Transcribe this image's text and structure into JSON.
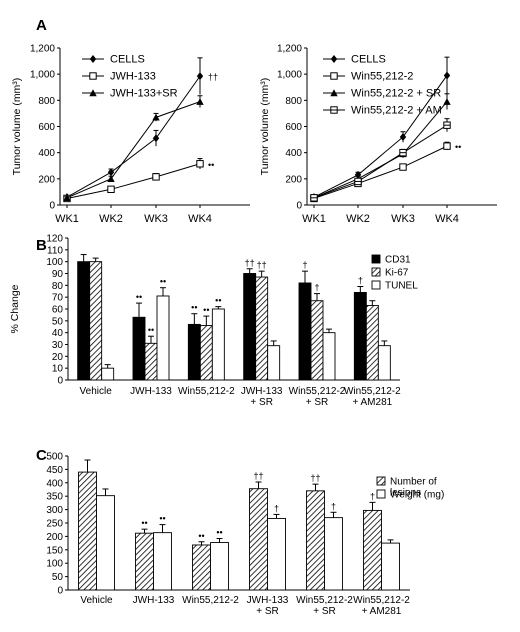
{
  "panels": [
    {
      "id": "A",
      "label": "A"
    },
    {
      "id": "B",
      "label": "B"
    },
    {
      "id": "C",
      "label": "C"
    }
  ],
  "chart_data": [
    {
      "type": "line",
      "panel": "A",
      "ylabel": "Tumor volume (mm³)",
      "categories": [
        "WK1",
        "WK2",
        "WK3",
        "WK4"
      ],
      "ylim": [
        0,
        1200
      ],
      "yticks": [
        "0",
        "200",
        "400",
        "600",
        "800",
        "1,000",
        "1,200"
      ],
      "legend_position": "top-left",
      "series": [
        {
          "name": "CELLS",
          "marker": "diamond",
          "values": [
            60,
            250,
            510,
            985
          ],
          "errors": [
            10,
            25,
            60,
            140
          ],
          "mark": "††"
        },
        {
          "name": "JWH-133",
          "marker": "square",
          "values": [
            50,
            120,
            215,
            315
          ],
          "errors": [
            5,
            15,
            25,
            40
          ],
          "mark": "••"
        },
        {
          "name": "JWH-133+SR",
          "marker": "triangle",
          "values": [
            55,
            200,
            670,
            790
          ],
          "errors": [
            8,
            20,
            30,
            45
          ],
          "mark": ""
        }
      ]
    },
    {
      "type": "line",
      "panel": "A",
      "ylabel": "Tumor volume (mm³)",
      "categories": [
        "WK1",
        "WK2",
        "WK3",
        "WK4"
      ],
      "ylim": [
        0,
        1200
      ],
      "yticks": [
        "0",
        "200",
        "400",
        "600",
        "800",
        "1,000",
        "1,200"
      ],
      "legend_position": "top-left",
      "series": [
        {
          "name": "CELLS",
          "marker": "diamond",
          "values": [
            60,
            230,
            520,
            990
          ],
          "errors": [
            8,
            20,
            40,
            140
          ],
          "mark": ""
        },
        {
          "name": "Win55,212-2",
          "marker": "square",
          "values": [
            50,
            165,
            290,
            450
          ],
          "errors": [
            5,
            15,
            20,
            30
          ],
          "mark": "••"
        },
        {
          "name": "Win55,212-2 + SR",
          "marker": "triangle",
          "values": [
            55,
            200,
            390,
            790
          ],
          "errors": [
            8,
            20,
            30,
            60
          ],
          "mark": ""
        },
        {
          "name": "Win55,212-2 + AM",
          "marker": "square-cross",
          "values": [
            55,
            180,
            400,
            610
          ],
          "errors": [
            8,
            18,
            25,
            50
          ],
          "mark": ""
        }
      ]
    },
    {
      "type": "bar",
      "panel": "B",
      "ylabel": "% Change",
      "ylim": [
        0,
        120
      ],
      "yticks": [
        "0",
        "10",
        "20",
        "30",
        "40",
        "50",
        "60",
        "70",
        "80",
        "90",
        "100",
        "110",
        "120"
      ],
      "categories": [
        "Vehicle",
        "JWH-133",
        "Win55,212-2",
        "JWH-133\n+ SR",
        "Win55,212-2\n+ SR",
        "Win55,212-2\n+ AM281"
      ],
      "legend_position": "top-right",
      "series": [
        {
          "name": "CD31",
          "pattern": "solid",
          "values": [
            100,
            53,
            47,
            90,
            82,
            74
          ],
          "errors": [
            6,
            12,
            9,
            4,
            10,
            5
          ],
          "marks": [
            "",
            "••",
            "••",
            "††",
            "†",
            "†"
          ]
        },
        {
          "name": "Ki-67",
          "pattern": "hatch",
          "values": [
            100,
            31,
            46,
            87,
            67,
            63
          ],
          "errors": [
            3,
            6,
            8,
            5,
            6,
            4
          ],
          "marks": [
            "",
            "••",
            "••",
            "††",
            "†",
            ""
          ]
        },
        {
          "name": "TUNEL",
          "pattern": "open",
          "values": [
            10,
            71,
            60,
            29,
            40,
            29
          ],
          "errors": [
            3,
            7,
            2,
            4,
            3,
            4
          ],
          "marks": [
            "",
            "••",
            "••",
            "",
            "",
            ""
          ]
        }
      ]
    },
    {
      "type": "bar",
      "panel": "C",
      "ylim": [
        0,
        500
      ],
      "yticks": [
        "0",
        "50",
        "100",
        "150",
        "200",
        "250",
        "300",
        "350",
        "400",
        "450",
        "500"
      ],
      "categories": [
        "Vehicle",
        "JWH-133",
        "Win55,212-2",
        "JWH-133\n+ SR",
        "Win55,212-2\n+ SR",
        "Win55,212-2\n+ AM281"
      ],
      "legend_position": "top-right",
      "series": [
        {
          "name": "Number of\nlesions",
          "pattern": "hatch",
          "values": [
            440,
            212,
            168,
            378,
            370,
            297
          ],
          "errors": [
            45,
            15,
            12,
            25,
            25,
            30
          ],
          "marks": [
            "",
            "••",
            "••",
            "††",
            "††",
            "†"
          ]
        },
        {
          "name": "Weight (mg)",
          "pattern": "open",
          "values": [
            352,
            214,
            177,
            267,
            270,
            175
          ],
          "errors": [
            25,
            30,
            15,
            15,
            20,
            12
          ],
          "marks": [
            "",
            "••",
            "••",
            "†",
            "†",
            ""
          ]
        }
      ]
    }
  ]
}
